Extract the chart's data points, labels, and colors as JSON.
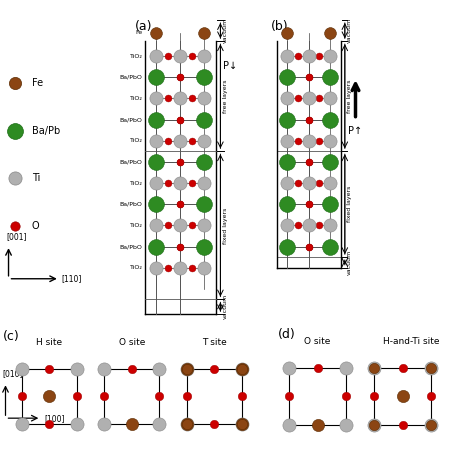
{
  "colors": {
    "Fe": "#8B4513",
    "BaPb": "#2E8B22",
    "Ti": "#B0B0B0",
    "O": "#CC0000",
    "background": "#FFFFFF"
  },
  "panel_labels": [
    "(a)",
    "(b)",
    "(c)",
    "(d)"
  ],
  "layer_labels_a": [
    "Fe",
    "TiO₂",
    "Ba/PbO",
    "TiO₂",
    "Ba/PbO",
    "TiO₂",
    "Ba/PbO",
    "TiO₂",
    "Ba/PbO",
    "TiO₂",
    "Ba/PbO",
    "TiO₂"
  ],
  "dim_labels": [
    "vacuum",
    "free layers",
    "fixed layers",
    "vacuum"
  ],
  "bottom_labels_c": [
    "H site",
    "O site",
    "T site"
  ],
  "bottom_labels_d": [
    "O site",
    "H-and-Ti site"
  ],
  "legend_labels": [
    "Fe",
    "Ba/Pb",
    "Ti",
    "O"
  ]
}
